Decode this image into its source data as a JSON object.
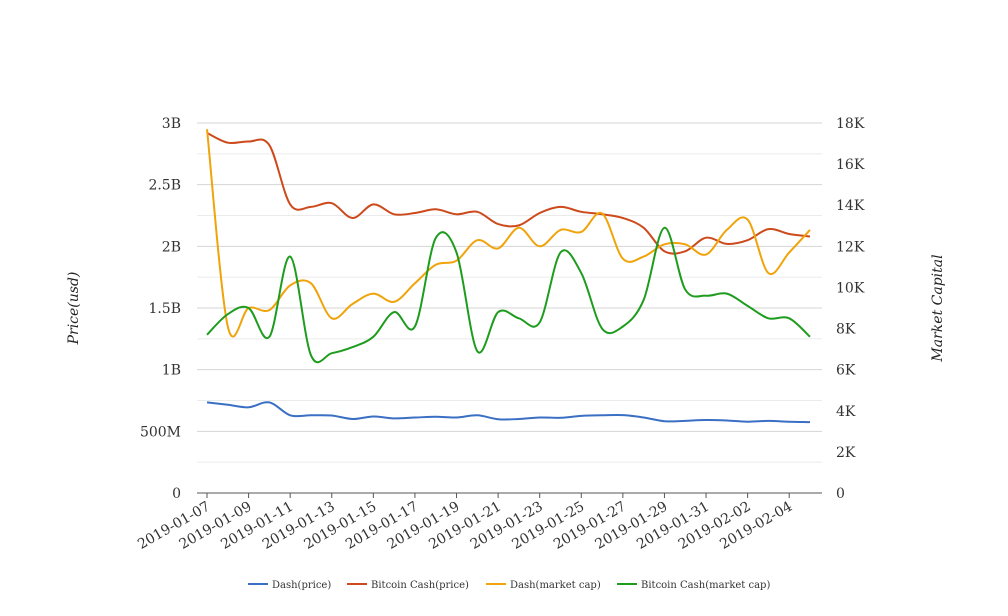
{
  "chart_data": {
    "type": "line",
    "title": "",
    "xlabel": "",
    "ylabel": "Price(usd)",
    "y2label": "Market Capital",
    "x_tick_labels": [
      "2019-01-07",
      "2019-01-09",
      "2019-01-11",
      "2019-01-13",
      "2019-01-15",
      "2019-01-17",
      "2019-01-19",
      "2019-01-21",
      "2019-01-23",
      "2019-01-25",
      "2019-01-27",
      "2019-01-29",
      "2019-01-31",
      "2019-02-02",
      "2019-02-04"
    ],
    "y_tick_labels": [
      "0",
      "500M",
      "1B",
      "1.5B",
      "2B",
      "2.5B",
      "3B"
    ],
    "y2_tick_labels": [
      "0",
      "2K",
      "4K",
      "6K",
      "8K",
      "10K",
      "12K",
      "14K",
      "16K",
      "18K"
    ],
    "ylim": [
      0,
      3000000000
    ],
    "y2lim": [
      0,
      18000
    ],
    "legend_position": "bottom",
    "grid": true,
    "x": [
      "2019-01-07",
      "2019-01-08",
      "2019-01-09",
      "2019-01-10",
      "2019-01-11",
      "2019-01-12",
      "2019-01-13",
      "2019-01-14",
      "2019-01-15",
      "2019-01-16",
      "2019-01-17",
      "2019-01-18",
      "2019-01-19",
      "2019-01-20",
      "2019-01-21",
      "2019-01-22",
      "2019-01-23",
      "2019-01-24",
      "2019-01-25",
      "2019-01-26",
      "2019-01-27",
      "2019-01-28",
      "2019-01-29",
      "2019-01-30",
      "2019-01-31",
      "2019-02-01",
      "2019-02-02",
      "2019-02-03",
      "2019-02-04",
      "2019-02-05"
    ],
    "series": [
      {
        "name": "Dash(price)",
        "axis": "left",
        "color": "#3a6fc4",
        "values": [
          735000000,
          715000000,
          695000000,
          735000000,
          630000000,
          630000000,
          628000000,
          600000000,
          620000000,
          605000000,
          612000000,
          618000000,
          612000000,
          630000000,
          598000000,
          600000000,
          612000000,
          610000000,
          625000000,
          630000000,
          632000000,
          612000000,
          582000000,
          585000000,
          592000000,
          588000000,
          578000000,
          585000000,
          578000000,
          575000000
        ]
      },
      {
        "name": "Bitcoin Cash(price)",
        "axis": "left",
        "color": "#cc4a1c",
        "values": [
          2920000000,
          2840000000,
          2850000000,
          2820000000,
          2340000000,
          2320000000,
          2350000000,
          2230000000,
          2340000000,
          2260000000,
          2270000000,
          2300000000,
          2260000000,
          2280000000,
          2180000000,
          2170000000,
          2270000000,
          2320000000,
          2280000000,
          2260000000,
          2230000000,
          2150000000,
          1960000000,
          1960000000,
          2070000000,
          2020000000,
          2050000000,
          2140000000,
          2100000000,
          2080000000
        ]
      },
      {
        "name": "Dash(market cap)",
        "axis": "right",
        "color": "#f0a30a",
        "values": [
          17700,
          8100,
          9000,
          8900,
          10100,
          10200,
          8500,
          9200,
          9700,
          9300,
          10200,
          11100,
          11300,
          12300,
          11900,
          12900,
          12000,
          12800,
          12700,
          13600,
          11400,
          11500,
          12100,
          12100,
          11600,
          12800,
          13300,
          10700,
          11700,
          12800
        ]
      },
      {
        "name": "Bitcoin Cash(market cap)",
        "axis": "right",
        "color": "#1e9c1e",
        "values": [
          7700,
          8700,
          9000,
          7600,
          11500,
          6700,
          6800,
          7100,
          7600,
          8800,
          8100,
          12400,
          11700,
          6900,
          8800,
          8500,
          8300,
          11700,
          10700,
          8000,
          8100,
          9400,
          12900,
          9900,
          9600,
          9700,
          9100,
          8500,
          8500,
          7600
        ]
      }
    ]
  }
}
